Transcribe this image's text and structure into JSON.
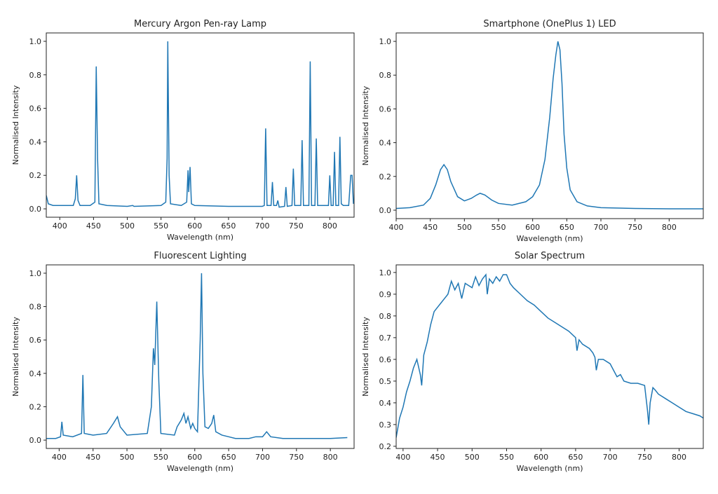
{
  "chart_data": [
    {
      "type": "line",
      "title": "Mercury Argon Pen-ray Lamp",
      "xlabel": "Wavelength (nm)",
      "ylabel": "Normalised Intensity",
      "color": "#1f77b4",
      "xlim": [
        380,
        836
      ],
      "ylim": [
        -0.05,
        1.05
      ],
      "xticks": [
        400,
        450,
        500,
        550,
        600,
        650,
        700,
        750,
        800
      ],
      "yticks": [
        {
          "value": 0,
          "label": "0.0"
        },
        0.2,
        0.4,
        0.6,
        0.8,
        {
          "value": 1,
          "label": "1.0"
        }
      ],
      "x": [
        380,
        383,
        390,
        420,
        423,
        425,
        427,
        430,
        445,
        452,
        454,
        456,
        458,
        470,
        500,
        508,
        510,
        550,
        557,
        559,
        560,
        562,
        564,
        580,
        588,
        590,
        591,
        593,
        595,
        600,
        650,
        700,
        703,
        705,
        707,
        713,
        715,
        717,
        721,
        723,
        725,
        733,
        735,
        737,
        744,
        746,
        748,
        757,
        759,
        761,
        769,
        771,
        773,
        778,
        780,
        782,
        798,
        800,
        802,
        805,
        807,
        809,
        813,
        815,
        817,
        820,
        828,
        831,
        833,
        835
      ],
      "values": [
        0.08,
        0.03,
        0.02,
        0.02,
        0.06,
        0.2,
        0.05,
        0.02,
        0.02,
        0.04,
        0.85,
        0.3,
        0.03,
        0.02,
        0.015,
        0.02,
        0.015,
        0.02,
        0.04,
        0.3,
        1.0,
        0.2,
        0.03,
        0.02,
        0.04,
        0.23,
        0.1,
        0.25,
        0.03,
        0.02,
        0.015,
        0.015,
        0.02,
        0.48,
        0.02,
        0.02,
        0.16,
        0.02,
        0.02,
        0.05,
        0.01,
        0.015,
        0.13,
        0.015,
        0.02,
        0.24,
        0.02,
        0.02,
        0.41,
        0.02,
        0.02,
        0.88,
        0.02,
        0.02,
        0.42,
        0.02,
        0.02,
        0.2,
        0.02,
        0.02,
        0.34,
        0.02,
        0.02,
        0.43,
        0.03,
        0.02,
        0.02,
        0.2,
        0.2,
        0.03
      ]
    },
    {
      "type": "line",
      "title": "Smartphone (OnePlus 1) LED",
      "xlabel": "Wavelength (nm)",
      "ylabel": "Normalised Intensity",
      "color": "#1f77b4",
      "xlim": [
        400,
        850
      ],
      "ylim": [
        -0.05,
        1.05
      ],
      "xticks": [
        400,
        450,
        500,
        550,
        600,
        650,
        700,
        750,
        800
      ],
      "yticks": [
        {
          "value": 0,
          "label": "0.0"
        },
        0.2,
        0.4,
        0.6,
        0.8,
        {
          "value": 1,
          "label": "1.0"
        }
      ],
      "x": [
        400,
        420,
        440,
        450,
        458,
        465,
        470,
        475,
        480,
        490,
        500,
        510,
        518,
        523,
        530,
        540,
        550,
        570,
        590,
        600,
        610,
        618,
        625,
        630,
        634,
        637,
        640,
        643,
        646,
        650,
        655,
        665,
        680,
        700,
        750,
        800,
        850
      ],
      "values": [
        0.01,
        0.015,
        0.03,
        0.07,
        0.15,
        0.24,
        0.27,
        0.24,
        0.17,
        0.08,
        0.055,
        0.07,
        0.09,
        0.1,
        0.09,
        0.06,
        0.04,
        0.03,
        0.05,
        0.08,
        0.15,
        0.3,
        0.55,
        0.78,
        0.92,
        1.0,
        0.95,
        0.75,
        0.45,
        0.25,
        0.12,
        0.05,
        0.025,
        0.015,
        0.01,
        0.008,
        0.008
      ]
    },
    {
      "type": "line",
      "title": "Fluorescent Lighting",
      "xlabel": "Wavelength (nm)",
      "ylabel": "Normalised Intensity",
      "color": "#1f77b4",
      "xlim": [
        381,
        835
      ],
      "ylim": [
        -0.05,
        1.05
      ],
      "xticks": [
        400,
        450,
        500,
        550,
        600,
        650,
        700,
        750,
        800
      ],
      "yticks": [
        {
          "value": 0,
          "label": "0.0"
        },
        0.2,
        0.4,
        0.6,
        0.8,
        {
          "value": 1,
          "label": "1.0"
        }
      ],
      "x": [
        381,
        395,
        402,
        404,
        406,
        420,
        433,
        435,
        437,
        450,
        470,
        480,
        486,
        490,
        500,
        530,
        536,
        539,
        541,
        544,
        547,
        550,
        570,
        574,
        580,
        584,
        587,
        590,
        594,
        597,
        600,
        604,
        608,
        610,
        612,
        615,
        620,
        625,
        628,
        631,
        640,
        650,
        660,
        680,
        690,
        700,
        706,
        712,
        730,
        760,
        800,
        825
      ],
      "values": [
        0.01,
        0.01,
        0.02,
        0.11,
        0.03,
        0.02,
        0.04,
        0.39,
        0.04,
        0.03,
        0.04,
        0.1,
        0.14,
        0.08,
        0.03,
        0.04,
        0.2,
        0.55,
        0.45,
        0.83,
        0.35,
        0.04,
        0.03,
        0.08,
        0.12,
        0.16,
        0.1,
        0.14,
        0.07,
        0.1,
        0.07,
        0.05,
        0.6,
        1.0,
        0.4,
        0.08,
        0.07,
        0.1,
        0.15,
        0.05,
        0.03,
        0.02,
        0.01,
        0.01,
        0.02,
        0.02,
        0.05,
        0.02,
        0.01,
        0.01,
        0.01,
        0.015
      ]
    },
    {
      "type": "line",
      "title": "Solar Spectrum",
      "xlabel": "Wavelength (nm)",
      "ylabel": "Normalised Intensity",
      "color": "#1f77b4",
      "xlim": [
        390,
        835
      ],
      "ylim": [
        0.19,
        1.035
      ],
      "xticks": [
        400,
        450,
        500,
        550,
        600,
        650,
        700,
        750,
        800
      ],
      "yticks": [
        0.2,
        0.3,
        0.4,
        0.5,
        0.6,
        0.7,
        0.8,
        0.9,
        {
          "value": 1,
          "label": "1.0"
        }
      ],
      "x": [
        390,
        395,
        400,
        405,
        410,
        415,
        420,
        425,
        427,
        430,
        435,
        440,
        445,
        450,
        455,
        460,
        465,
        470,
        475,
        480,
        485,
        490,
        495,
        500,
        505,
        510,
        515,
        520,
        522,
        525,
        530,
        535,
        540,
        545,
        550,
        555,
        560,
        570,
        580,
        590,
        600,
        610,
        620,
        630,
        640,
        650,
        652,
        655,
        660,
        670,
        675,
        678,
        680,
        683,
        690,
        700,
        705,
        710,
        715,
        720,
        730,
        740,
        750,
        754,
        756,
        758,
        762,
        765,
        770,
        780,
        790,
        800,
        810,
        820,
        830,
        835
      ],
      "values": [
        0.24,
        0.33,
        0.38,
        0.45,
        0.5,
        0.56,
        0.6,
        0.53,
        0.48,
        0.62,
        0.68,
        0.76,
        0.82,
        0.84,
        0.86,
        0.88,
        0.9,
        0.96,
        0.92,
        0.95,
        0.88,
        0.95,
        0.94,
        0.93,
        0.98,
        0.94,
        0.97,
        0.99,
        0.9,
        0.97,
        0.95,
        0.98,
        0.96,
        0.99,
        0.99,
        0.95,
        0.93,
        0.9,
        0.87,
        0.85,
        0.82,
        0.79,
        0.77,
        0.75,
        0.73,
        0.7,
        0.64,
        0.69,
        0.67,
        0.65,
        0.63,
        0.61,
        0.55,
        0.6,
        0.6,
        0.58,
        0.55,
        0.52,
        0.53,
        0.5,
        0.49,
        0.49,
        0.48,
        0.37,
        0.3,
        0.4,
        0.47,
        0.46,
        0.44,
        0.42,
        0.4,
        0.38,
        0.36,
        0.35,
        0.34,
        0.33
      ]
    }
  ]
}
